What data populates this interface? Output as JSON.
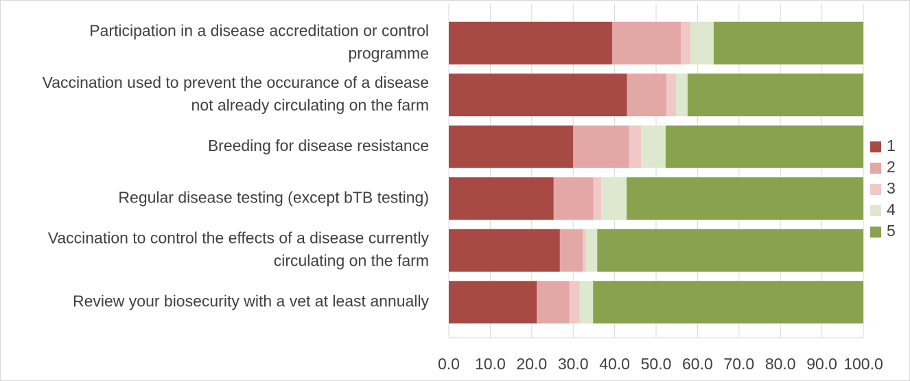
{
  "chart_data": {
    "type": "stacked_barh",
    "categories": [
      "Participation in a disease accreditation or control programme",
      "Vaccination used to prevent the occurance of a disease not already circulating on the farm",
      "Breeding for disease resistance",
      "Regular disease testing (except bTB testing)",
      "Vaccination to control the effects of a disease currently circulating on the farm",
      "Review your biosecurity with a vet at least annually"
    ],
    "series": [
      {
        "name": "1",
        "color": "#a84a44",
        "values": [
          39.4,
          43.0,
          30.0,
          25.3,
          26.8,
          21.2
        ]
      },
      {
        "name": "2",
        "color": "#e3a8a6",
        "values": [
          16.6,
          9.5,
          13.5,
          9.6,
          5.5,
          7.9
        ]
      },
      {
        "name": "3",
        "color": "#f0c8c7",
        "values": [
          2.3,
          2.3,
          2.9,
          1.9,
          0.8,
          2.5
        ]
      },
      {
        "name": "4",
        "color": "#dde8ce",
        "values": [
          5.6,
          2.8,
          5.9,
          6.1,
          2.7,
          3.2
        ]
      },
      {
        "name": "5",
        "color": "#88a24e",
        "values": [
          36.1,
          42.4,
          47.7,
          57.1,
          64.2,
          65.2
        ]
      }
    ],
    "xlim": [
      0,
      100
    ],
    "xticks": [
      {
        "value": 0,
        "label": "0.0"
      },
      {
        "value": 10,
        "label": "10.0"
      },
      {
        "value": 20,
        "label": "20.0"
      },
      {
        "value": 30,
        "label": "30.0"
      },
      {
        "value": 40,
        "label": "40.0"
      },
      {
        "value": 50,
        "label": "50.0"
      },
      {
        "value": 60,
        "label": "60.0"
      },
      {
        "value": 70,
        "label": "70.0"
      },
      {
        "value": 80,
        "label": "80.0"
      },
      {
        "value": 90,
        "label": "90.0"
      },
      {
        "value": 100,
        "label": "100.0"
      }
    ],
    "grid": true,
    "legend": "right"
  }
}
